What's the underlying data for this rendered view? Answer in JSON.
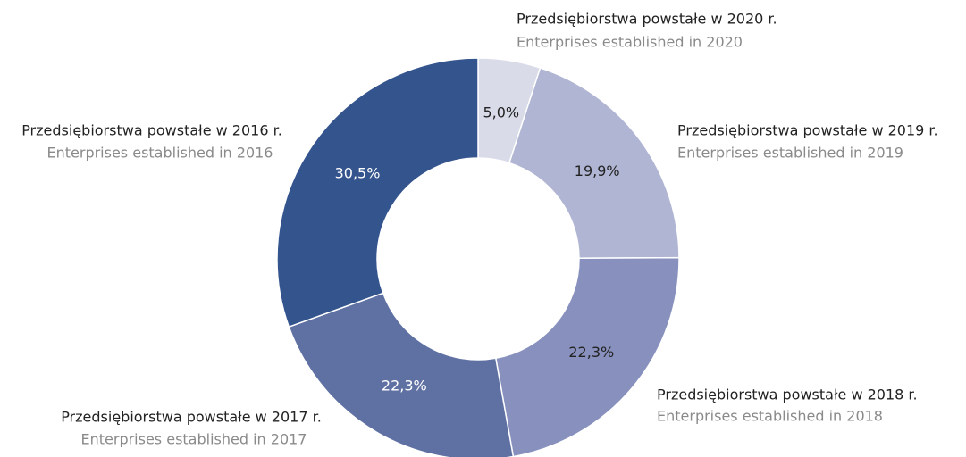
{
  "chart_data": {
    "type": "donut",
    "categories": [
      "Przedsiębiorstwa powstałe w 2020 r.",
      "Przedsiębiorstwa powstałe w 2019 r.",
      "Przedsiębiorstwa powstałe w 2018 r.",
      "Przedsiębiorstwa powstałe w 2017 r.",
      "Przedsiębiorstwa powstałe w 2016 r."
    ],
    "categories_en": [
      "Enterprises established in 2020",
      "Enterprises established in 2019",
      "Enterprises established in 2018",
      "Enterprises established in 2017",
      "Enterprises established in 2016"
    ],
    "values": [
      5.0,
      19.9,
      22.3,
      22.3,
      30.5
    ],
    "value_labels": [
      "5,0%",
      "19,9%",
      "22,3%",
      "22,3%",
      "30,5%"
    ],
    "colors": [
      "#d9dbe9",
      "#b0b5d3",
      "#8891bd",
      "#5f70a3",
      "#34548e"
    ]
  }
}
